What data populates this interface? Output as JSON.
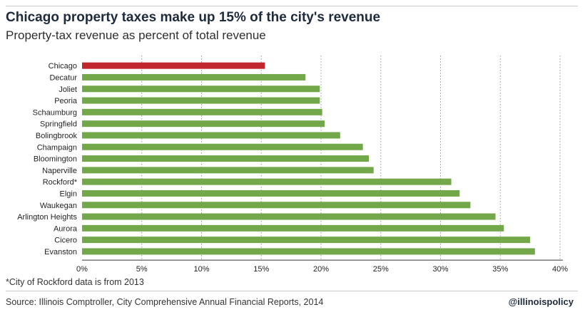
{
  "header": {
    "title": "Chicago property taxes make up 15% of the city's revenue",
    "subtitle": "Property-tax revenue as percent of total revenue"
  },
  "footer": {
    "footnote": "*City of Rockford data is from 2013",
    "source": "Source: Illinois Comptroller, City Comprehensive Annual Financial Reports, 2014",
    "handle": "@illinoispolicy"
  },
  "colors": {
    "highlight": "#c0272d",
    "bar": "#73a84a",
    "grid": "#9a9a9a",
    "axis": "#333333"
  },
  "chart_data": {
    "type": "bar",
    "orientation": "horizontal",
    "title": "Chicago property taxes make up 15% of the city's revenue",
    "subtitle": "Property-tax revenue as percent of total revenue",
    "categories": [
      "Chicago",
      "Decatur",
      "Joliet",
      "Peoria",
      "Schaumburg",
      "Springfield",
      "Bolingbrook",
      "Champaign",
      "Bloomington",
      "Naperville",
      "Rockford*",
      "Elgin",
      "Waukegan",
      "Arlington Heights",
      "Aurora",
      "Cicero",
      "Evanston"
    ],
    "values": [
      15.3,
      18.7,
      19.9,
      19.9,
      20.1,
      20.3,
      21.6,
      23.5,
      24.0,
      24.4,
      30.9,
      31.6,
      32.5,
      34.6,
      35.3,
      37.5,
      37.9
    ],
    "highlight_category": "Chicago",
    "xlim": [
      0,
      40
    ],
    "xticks": [
      "0%",
      "5%",
      "10%",
      "15%",
      "20%",
      "25%",
      "30%",
      "35%",
      "40%"
    ],
    "xtick_values": [
      0,
      5,
      10,
      15,
      20,
      25,
      30,
      35,
      40
    ],
    "grid": "vertical dotted",
    "legend": "none"
  }
}
